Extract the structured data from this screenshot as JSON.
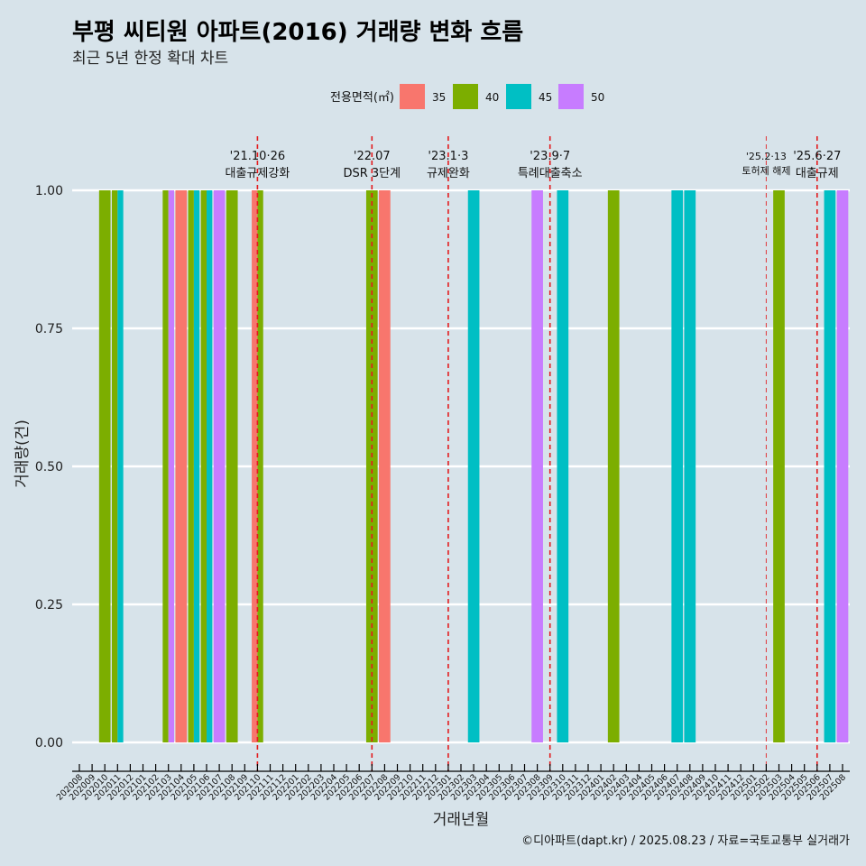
{
  "chart_data": {
    "type": "bar",
    "title": "부평 씨티원 아파트(2016) 거래량 변화 흐름",
    "subtitle": "최근 5년 한정 확대 차트",
    "xlabel": "거래년월",
    "ylabel": "거래량(건)",
    "ylim": [
      0,
      1
    ],
    "yticks": [
      "0.00",
      "0.25",
      "0.50",
      "0.75",
      "1.00"
    ],
    "ytick_values": [
      0,
      0.25,
      0.5,
      0.75,
      1
    ],
    "grid": "horizontal",
    "legend": {
      "title": "전용면적(㎡)",
      "position": "top",
      "entries": [
        {
          "label": "35",
          "color": "#F8766D"
        },
        {
          "label": "40",
          "color": "#7CAE00"
        },
        {
          "label": "45",
          "color": "#00BFC4"
        },
        {
          "label": "50",
          "color": "#C77CFF"
        }
      ]
    },
    "categories": [
      "202008",
      "202009",
      "202010",
      "202011",
      "202012",
      "202101",
      "202102",
      "202103",
      "202104",
      "202105",
      "202106",
      "202107",
      "202108",
      "202109",
      "202110",
      "202111",
      "202112",
      "202201",
      "202202",
      "202203",
      "202204",
      "202205",
      "202206",
      "202207",
      "202208",
      "202209",
      "202210",
      "202211",
      "202212",
      "202301",
      "202302",
      "202303",
      "202304",
      "202305",
      "202306",
      "202307",
      "202308",
      "202309",
      "202310",
      "202311",
      "202312",
      "202401",
      "202402",
      "202403",
      "202404",
      "202405",
      "202406",
      "202407",
      "202408",
      "202409",
      "202410",
      "202411",
      "202412",
      "202501",
      "202502",
      "202503",
      "202504",
      "202505",
      "202506",
      "202507",
      "202508"
    ],
    "series": [
      {
        "name": "35",
        "color": "#F8766D",
        "values": [
          0,
          0,
          0,
          0,
          0,
          0,
          0,
          0,
          1,
          0,
          0,
          0,
          0,
          0,
          1,
          0,
          0,
          0,
          0,
          0,
          0,
          0,
          0,
          0,
          1,
          0,
          0,
          0,
          0,
          0,
          0,
          0,
          0,
          0,
          0,
          0,
          0,
          0,
          0,
          0,
          0,
          0,
          0,
          0,
          0,
          0,
          0,
          0,
          0,
          0,
          0,
          0,
          0,
          0,
          0,
          0,
          0,
          0,
          0,
          0,
          0
        ]
      },
      {
        "name": "40",
        "color": "#7CAE00",
        "values": [
          0,
          0,
          1,
          1,
          0,
          0,
          0,
          1,
          0,
          1,
          1,
          0,
          1,
          0,
          1,
          0,
          0,
          0,
          0,
          0,
          0,
          0,
          0,
          1,
          0,
          0,
          0,
          0,
          0,
          0,
          0,
          0,
          0,
          0,
          0,
          0,
          0,
          0,
          0,
          0,
          0,
          0,
          1,
          0,
          0,
          0,
          0,
          0,
          0,
          0,
          0,
          0,
          0,
          0,
          0,
          1,
          0,
          0,
          0,
          0,
          0
        ]
      },
      {
        "name": "45",
        "color": "#00BFC4",
        "values": [
          0,
          0,
          0,
          1,
          0,
          0,
          0,
          0,
          0,
          1,
          1,
          0,
          0,
          0,
          0,
          0,
          0,
          0,
          0,
          0,
          0,
          0,
          0,
          0,
          0,
          0,
          0,
          0,
          0,
          0,
          0,
          1,
          0,
          0,
          0,
          0,
          0,
          0,
          1,
          0,
          0,
          0,
          0,
          0,
          0,
          0,
          0,
          1,
          1,
          0,
          0,
          0,
          0,
          0,
          0,
          0,
          0,
          0,
          0,
          1,
          0
        ]
      },
      {
        "name": "50",
        "color": "#C77CFF",
        "values": [
          0,
          0,
          0,
          0,
          0,
          0,
          0,
          1,
          0,
          0,
          0,
          1,
          0,
          0,
          0,
          0,
          0,
          0,
          0,
          0,
          0,
          0,
          0,
          0,
          0,
          0,
          0,
          0,
          0,
          0,
          0,
          0,
          0,
          0,
          0,
          0,
          1,
          0,
          0,
          0,
          0,
          0,
          0,
          0,
          0,
          0,
          0,
          0,
          0,
          0,
          0,
          0,
          0,
          0,
          0,
          0,
          0,
          0,
          0,
          0,
          1
        ]
      }
    ],
    "annotations": [
      {
        "x": "202110",
        "date": "'21.10·26",
        "label": "대출규제강화"
      },
      {
        "x": "202207",
        "date": "'22.07",
        "label": "DSR 3단계"
      },
      {
        "x": "202301",
        "date": "'23.1·3",
        "label": "규제완화"
      },
      {
        "x": "202309",
        "date": "'23.9·7",
        "label": "특례대출축소"
      },
      {
        "x": "202502",
        "date": "'25.2·13",
        "label": "토허제 해제",
        "emphasis": "low"
      },
      {
        "x": "202506",
        "date": "'25.6·27",
        "label": "대출규제"
      }
    ],
    "annotation_line_color": "#E31A1C",
    "background_color": "#D7E3EA",
    "caption": "©디아파트(dapt.kr) / 2025.08.23 / 자료=국토교통부 실거래가"
  }
}
